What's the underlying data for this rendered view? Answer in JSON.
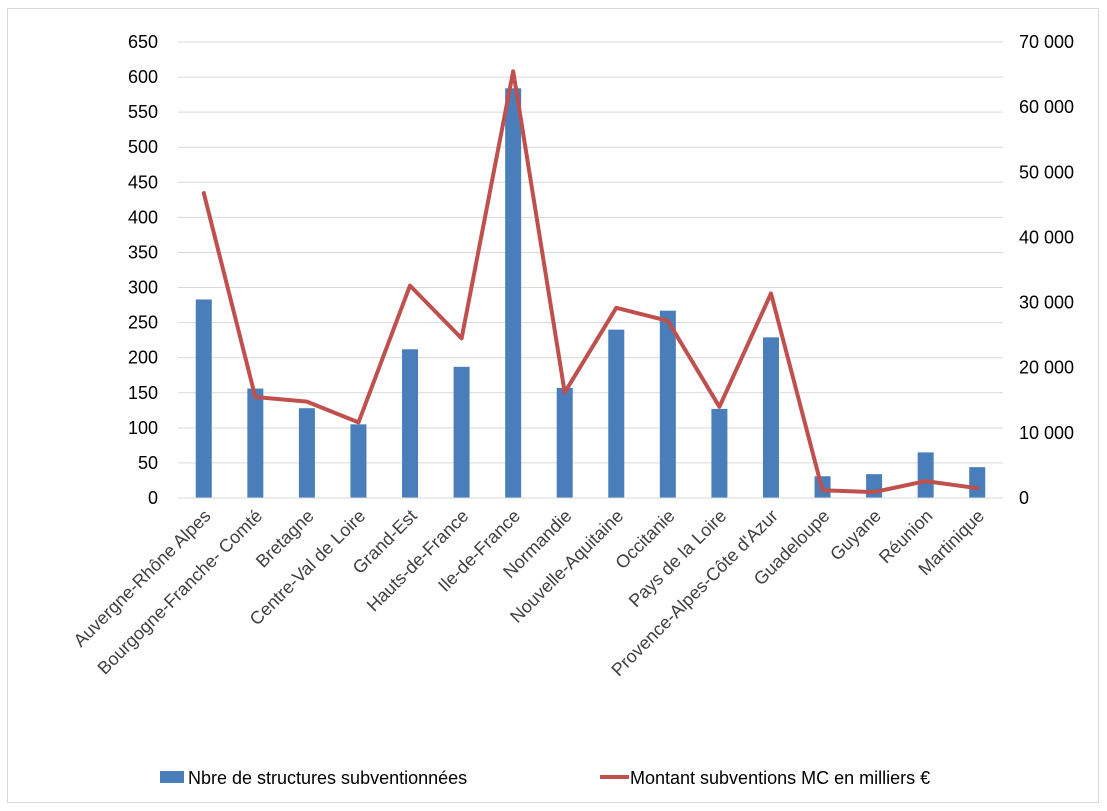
{
  "chart_data": {
    "type": "bar+line",
    "categories": [
      "Auvergne-Rhône Alpes",
      "Bourgogne-Franche- Comté",
      "Bretagne",
      "Centre-Val de Loire",
      "Grand-Est",
      "Hauts-de-France",
      "Ile-de-France",
      "Normandie",
      "Nouvelle-Aquitaine",
      "Occitanie",
      "Pays de la Loire",
      "Provence-Alpes-Côte d'Azur",
      "Guadeloupe",
      "Guyane",
      "Réunion",
      "Martinique"
    ],
    "series": [
      {
        "name": "Nbre de structures subventionnées",
        "type": "bar",
        "axis": "left",
        "color": "#4a7ebb",
        "values": [
          283,
          156,
          128,
          105,
          212,
          187,
          584,
          157,
          240,
          267,
          127,
          229,
          31,
          34,
          65,
          44
        ]
      },
      {
        "name": "Montant subventions MC en milliers €",
        "type": "line",
        "axis": "right",
        "color": "#c0504d",
        "values": [
          46800,
          15500,
          14800,
          11600,
          32600,
          24500,
          65500,
          16200,
          29200,
          27200,
          14000,
          31400,
          1200,
          900,
          2600,
          1500
        ]
      }
    ],
    "y_left": {
      "lim": [
        0,
        650
      ],
      "ticks": [
        "0",
        "50",
        "100",
        "150",
        "200",
        "250",
        "300",
        "350",
        "400",
        "450",
        "500",
        "550",
        "600",
        "650"
      ]
    },
    "y_right": {
      "lim": [
        0,
        70000
      ],
      "ticks": [
        "0",
        "10 000",
        "20 000",
        "30 000",
        "40 000",
        "50 000",
        "60 000",
        "70 000"
      ]
    },
    "grid": true,
    "legend": "bottom"
  }
}
